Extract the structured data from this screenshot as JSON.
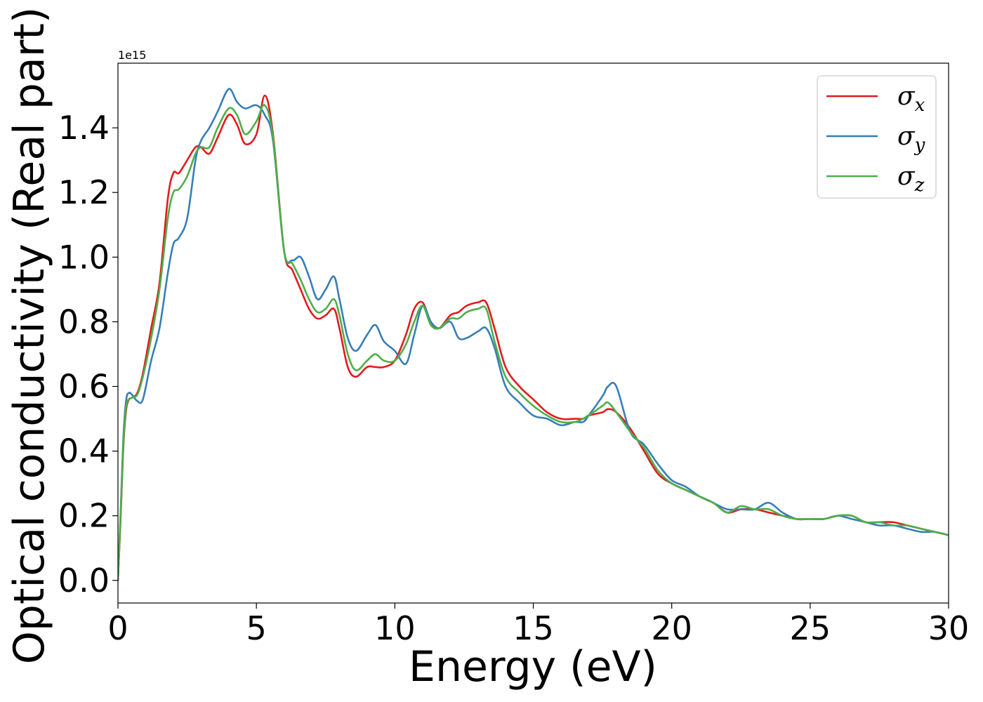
{
  "chart_data": {
    "type": "line",
    "xlabel": "Energy (eV)",
    "ylabel": "Optical conductivity (Real part)",
    "offset_text": "1e15",
    "xlim": [
      0,
      30
    ],
    "ylim": [
      -0.07,
      1.6
    ],
    "x_ticks": [
      0,
      5,
      10,
      15,
      20,
      25,
      30
    ],
    "x_tick_labels": [
      "0",
      "5",
      "10",
      "15",
      "20",
      "25",
      "30"
    ],
    "y_ticks": [
      0.0,
      0.2,
      0.4,
      0.6,
      0.8,
      1.0,
      1.2,
      1.4
    ],
    "y_tick_labels": [
      "0.0",
      "0.2",
      "0.4",
      "0.6",
      "0.8",
      "1.0",
      "1.2",
      "1.4"
    ],
    "grid": false,
    "legend_position": "top-right",
    "series": [
      {
        "name": "σx",
        "legend_base": "σ",
        "legend_sub": "x",
        "color": "#e41a1c",
        "x": [
          0,
          0.1,
          0.2,
          0.3,
          0.4,
          0.5,
          0.7,
          0.9,
          1.2,
          1.5,
          1.8,
          2.0,
          2.2,
          2.5,
          2.8,
          3.0,
          3.3,
          3.6,
          4.0,
          4.3,
          4.6,
          5.0,
          5.3,
          5.6,
          6.0,
          6.3,
          6.6,
          6.9,
          7.2,
          7.5,
          7.8,
          8.0,
          8.3,
          8.6,
          9.0,
          9.3,
          9.6,
          10.0,
          10.4,
          10.7,
          11.0,
          11.3,
          11.6,
          12.0,
          12.3,
          12.6,
          13.0,
          13.3,
          13.6,
          14.0,
          14.5,
          15.0,
          15.5,
          16.0,
          16.5,
          16.8,
          17.0,
          17.5,
          17.7,
          18.0,
          18.5,
          19.0,
          19.5,
          20.0,
          20.5,
          21.0,
          21.5,
          22.0,
          22.5,
          23.0,
          23.5,
          24.0,
          24.5,
          25.0,
          25.5,
          26.0,
          26.5,
          27.0,
          27.5,
          28.0,
          28.5,
          29.0,
          29.5,
          30.0
        ],
        "y": [
          0.0,
          0.2,
          0.42,
          0.53,
          0.56,
          0.565,
          0.58,
          0.64,
          0.78,
          0.92,
          1.18,
          1.26,
          1.26,
          1.3,
          1.34,
          1.34,
          1.32,
          1.37,
          1.44,
          1.41,
          1.35,
          1.38,
          1.5,
          1.38,
          1.02,
          0.96,
          0.9,
          0.84,
          0.81,
          0.82,
          0.84,
          0.78,
          0.66,
          0.63,
          0.66,
          0.66,
          0.66,
          0.68,
          0.76,
          0.84,
          0.86,
          0.8,
          0.78,
          0.82,
          0.83,
          0.85,
          0.86,
          0.86,
          0.78,
          0.66,
          0.6,
          0.56,
          0.52,
          0.5,
          0.5,
          0.5,
          0.51,
          0.52,
          0.53,
          0.52,
          0.47,
          0.4,
          0.33,
          0.3,
          0.28,
          0.26,
          0.24,
          0.21,
          0.22,
          0.22,
          0.21,
          0.2,
          0.19,
          0.19,
          0.19,
          0.2,
          0.2,
          0.18,
          0.18,
          0.18,
          0.17,
          0.16,
          0.15,
          0.14
        ]
      },
      {
        "name": "σy",
        "legend_base": "σ",
        "legend_sub": "y",
        "color": "#377eb8",
        "x": [
          0,
          0.1,
          0.2,
          0.3,
          0.4,
          0.5,
          0.7,
          0.9,
          1.2,
          1.5,
          1.8,
          2.0,
          2.2,
          2.5,
          2.8,
          3.0,
          3.3,
          3.6,
          4.0,
          4.3,
          4.6,
          5.0,
          5.3,
          5.6,
          6.0,
          6.3,
          6.6,
          6.9,
          7.2,
          7.5,
          7.8,
          8.0,
          8.3,
          8.6,
          9.0,
          9.3,
          9.6,
          10.0,
          10.4,
          10.7,
          11.0,
          11.3,
          11.6,
          12.0,
          12.3,
          12.6,
          13.0,
          13.3,
          13.6,
          14.0,
          14.5,
          15.0,
          15.5,
          16.0,
          16.5,
          16.8,
          17.0,
          17.5,
          17.7,
          18.0,
          18.5,
          19.0,
          19.5,
          20.0,
          20.5,
          21.0,
          21.5,
          22.0,
          22.5,
          23.0,
          23.5,
          24.0,
          24.5,
          25.0,
          25.5,
          26.0,
          26.5,
          27.0,
          27.5,
          28.0,
          28.5,
          29.0,
          29.5,
          30.0
        ],
        "y": [
          0.0,
          0.22,
          0.45,
          0.56,
          0.58,
          0.575,
          0.555,
          0.56,
          0.68,
          0.78,
          0.95,
          1.04,
          1.06,
          1.12,
          1.3,
          1.36,
          1.4,
          1.45,
          1.52,
          1.48,
          1.46,
          1.47,
          1.44,
          1.36,
          1.02,
          0.99,
          1.0,
          0.94,
          0.87,
          0.9,
          0.94,
          0.87,
          0.75,
          0.71,
          0.76,
          0.79,
          0.74,
          0.71,
          0.67,
          0.76,
          0.85,
          0.8,
          0.78,
          0.8,
          0.75,
          0.75,
          0.77,
          0.78,
          0.72,
          0.6,
          0.55,
          0.51,
          0.5,
          0.48,
          0.49,
          0.49,
          0.51,
          0.57,
          0.6,
          0.6,
          0.46,
          0.42,
          0.36,
          0.31,
          0.29,
          0.26,
          0.24,
          0.22,
          0.22,
          0.22,
          0.24,
          0.21,
          0.19,
          0.19,
          0.19,
          0.2,
          0.19,
          0.18,
          0.17,
          0.17,
          0.16,
          0.15,
          0.15,
          0.14
        ]
      },
      {
        "name": "σz",
        "legend_base": "σ",
        "legend_sub": "z",
        "color": "#4daf4a",
        "x": [
          0,
          0.1,
          0.2,
          0.3,
          0.4,
          0.5,
          0.7,
          0.9,
          1.2,
          1.5,
          1.8,
          2.0,
          2.2,
          2.5,
          2.8,
          3.0,
          3.3,
          3.6,
          4.0,
          4.3,
          4.6,
          5.0,
          5.3,
          5.6,
          6.0,
          6.3,
          6.6,
          6.9,
          7.2,
          7.5,
          7.8,
          8.0,
          8.3,
          8.6,
          9.0,
          9.3,
          9.6,
          10.0,
          10.4,
          10.7,
          11.0,
          11.3,
          11.6,
          12.0,
          12.3,
          12.6,
          13.0,
          13.3,
          13.6,
          14.0,
          14.5,
          15.0,
          15.5,
          16.0,
          16.5,
          16.8,
          17.0,
          17.5,
          17.7,
          18.0,
          18.5,
          19.0,
          19.5,
          20.0,
          20.5,
          21.0,
          21.5,
          22.0,
          22.5,
          23.0,
          23.5,
          24.0,
          24.5,
          25.0,
          25.5,
          26.0,
          26.5,
          27.0,
          27.5,
          28.0,
          28.5,
          29.0,
          29.5,
          30.0
        ],
        "y": [
          0.0,
          0.21,
          0.43,
          0.54,
          0.56,
          0.565,
          0.575,
          0.63,
          0.75,
          0.9,
          1.12,
          1.2,
          1.21,
          1.25,
          1.32,
          1.34,
          1.34,
          1.4,
          1.46,
          1.44,
          1.38,
          1.42,
          1.47,
          1.37,
          1.02,
          0.98,
          0.93,
          0.87,
          0.83,
          0.84,
          0.87,
          0.82,
          0.7,
          0.65,
          0.68,
          0.7,
          0.68,
          0.68,
          0.73,
          0.8,
          0.85,
          0.79,
          0.78,
          0.81,
          0.81,
          0.83,
          0.84,
          0.84,
          0.74,
          0.63,
          0.58,
          0.54,
          0.51,
          0.49,
          0.49,
          0.5,
          0.51,
          0.54,
          0.55,
          0.52,
          0.46,
          0.41,
          0.34,
          0.3,
          0.28,
          0.26,
          0.24,
          0.21,
          0.23,
          0.22,
          0.22,
          0.2,
          0.19,
          0.19,
          0.19,
          0.2,
          0.2,
          0.18,
          0.18,
          0.17,
          0.17,
          0.16,
          0.15,
          0.14
        ]
      }
    ]
  }
}
